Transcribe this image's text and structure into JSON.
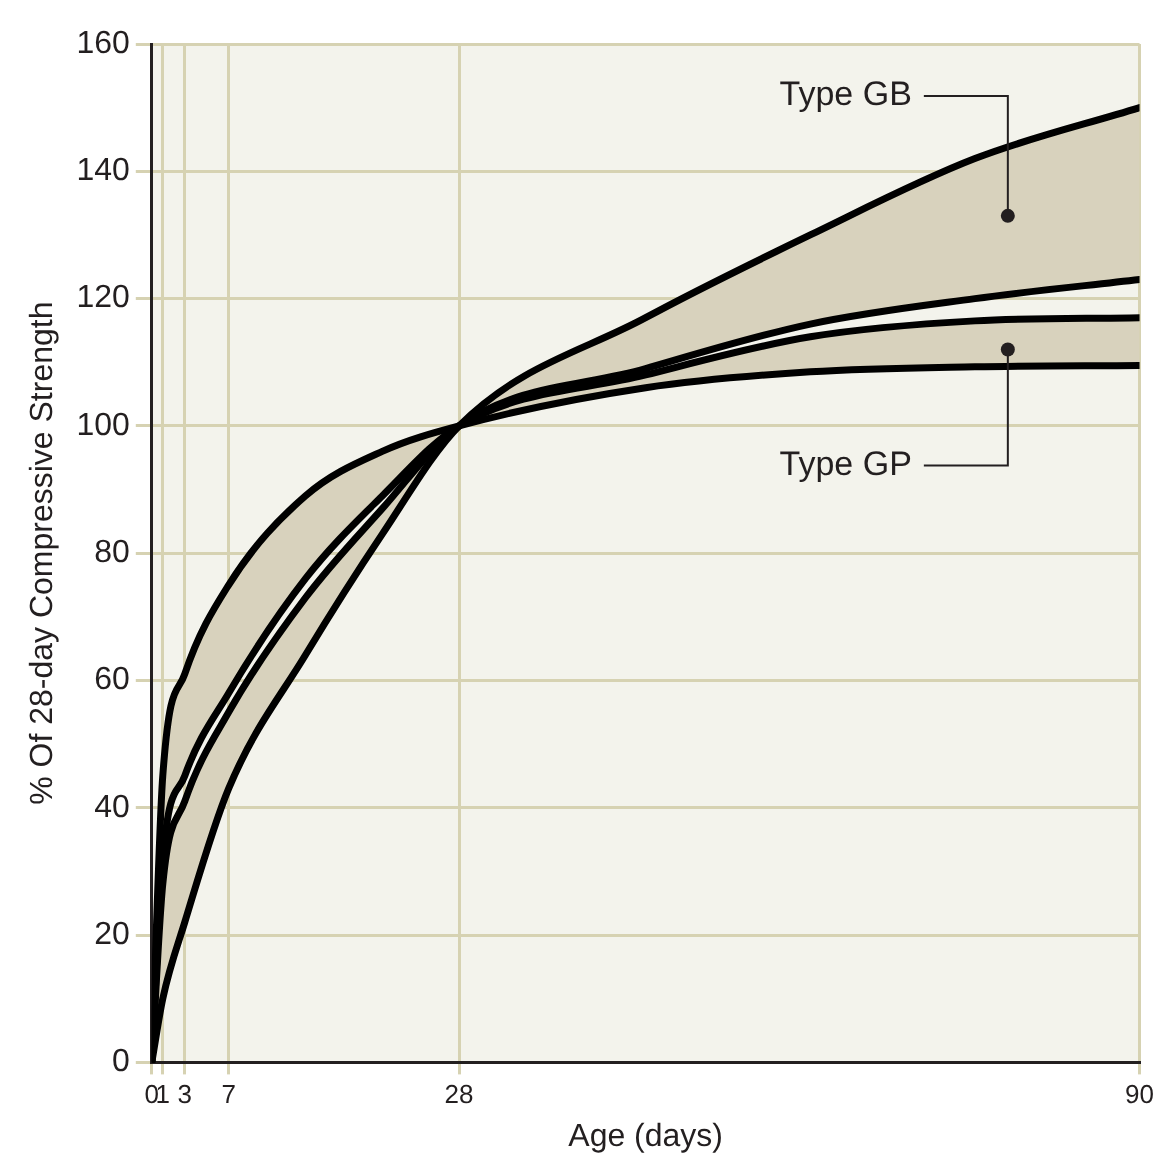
{
  "chart_data": {
    "type": "line",
    "xlabel": "Age (days)",
    "ylabel": "% Of 28-day Compressive Strength",
    "x": [
      0,
      1,
      3,
      7,
      14,
      21,
      28,
      45,
      60,
      75,
      90
    ],
    "series": [
      {
        "color": "#000000",
        "values": [
          0,
          45,
          61,
          75,
          89,
          96,
          100,
          106,
          108.5,
          109.3,
          109.5
        ]
      },
      {
        "color": "#000000",
        "values": [
          0,
          32,
          45,
          58,
          76,
          89,
          100,
          108,
          114,
          116.5,
          117
        ]
      },
      {
        "color": "#000000",
        "values": [
          0,
          28,
          41,
          55,
          73,
          87,
          100,
          109,
          116,
          120,
          123
        ]
      },
      {
        "color": "#000000",
        "values": [
          0,
          10,
          22,
          43,
          64,
          83,
          100,
          117,
          130,
          142,
          150
        ]
      }
    ],
    "xlim": [
      0,
      90
    ],
    "xticks": [
      0,
      1,
      3,
      7,
      28,
      90
    ],
    "ylim": [
      0,
      160
    ],
    "yticks": [
      0,
      20,
      40,
      60,
      80,
      100,
      120,
      140,
      160
    ],
    "grid": true,
    "legend": false,
    "marker": "none",
    "line_style": "solid",
    "annotations": [
      {
        "text": "Type GB",
        "x": 78,
        "y": 133
      },
      {
        "text": "Type GP",
        "x": 78,
        "y": 112
      }
    ]
  }
}
